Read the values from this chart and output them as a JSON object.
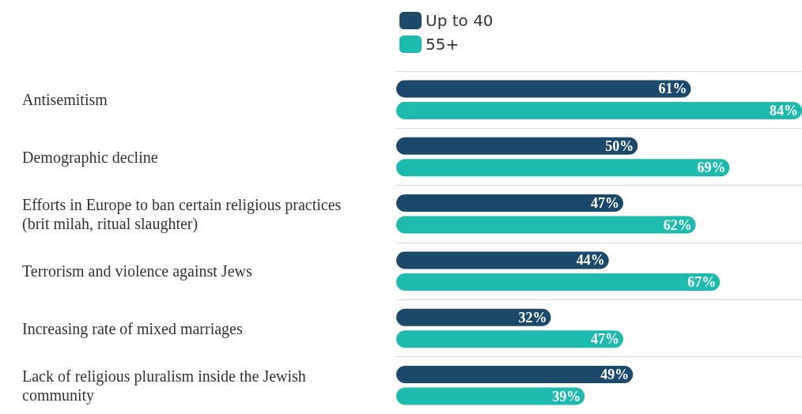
{
  "chart_data": {
    "type": "bar",
    "orientation": "horizontal",
    "categories": [
      "Antisemitism",
      "Demographic decline",
      "Efforts in Europe to ban certain religious practices (brit milah, ritual slaughter)",
      "Terrorism and violence against Jews",
      "Increasing rate of mixed marriages",
      "Lack of religious pluralism inside the Jewish community"
    ],
    "series": [
      {
        "name": "Up to 40",
        "color": "#1a496b",
        "values": [
          61,
          50,
          47,
          44,
          32,
          49
        ],
        "value_labels": [
          "61%",
          "50%",
          "47%",
          "44%",
          "32%",
          "49%"
        ]
      },
      {
        "name": "55+",
        "color": "#1dbbad",
        "values": [
          84,
          69,
          62,
          67,
          47,
          39
        ],
        "value_labels": [
          "84%",
          "69%",
          "62%",
          "67%",
          "47%",
          "39%"
        ]
      }
    ],
    "legend": "top left",
    "grid": "y",
    "tick_labels": "y"
  }
}
